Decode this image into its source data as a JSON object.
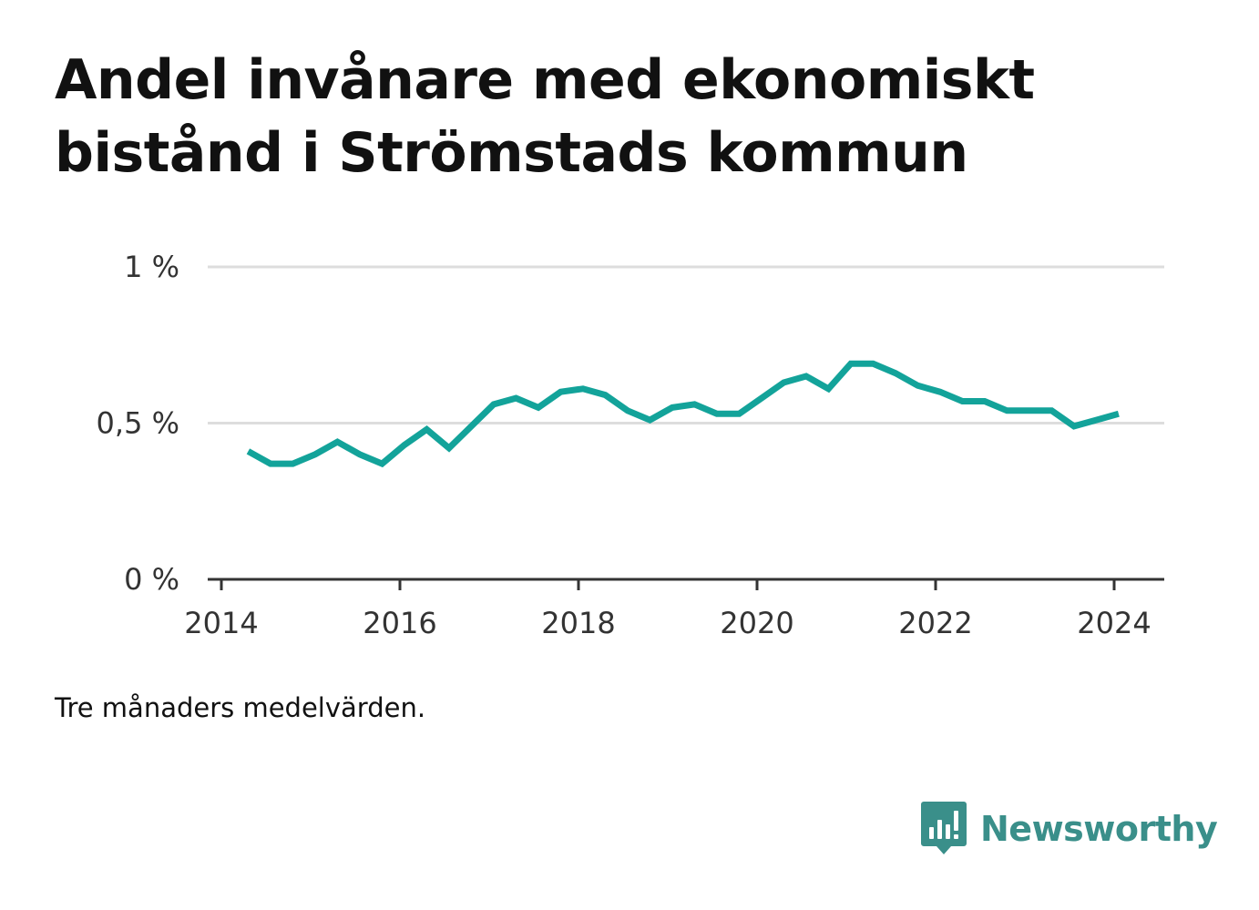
{
  "title": "Andel invånare med ekonomiskt bistånd i Strömstads kommun",
  "note": "Tre månaders medelvärden.",
  "brand": {
    "name": "Newsworthy",
    "icon": "newsworthy-chart-bubble-icon",
    "color": "#3a8f8a"
  },
  "colors": {
    "line": "#13a39a",
    "grid": "#dddddd",
    "axis": "#333333"
  },
  "chart_data": {
    "type": "line",
    "title": "Andel invånare med ekonomiskt bistånd i Strömstads kommun",
    "xlabel": "",
    "ylabel": "",
    "xlim": [
      2014,
      2024.6
    ],
    "ylim": [
      0,
      1
    ],
    "x_ticks": [
      2014,
      2016,
      2018,
      2020,
      2022,
      2024
    ],
    "x_tick_labels": [
      "2014",
      "2016",
      "2018",
      "2020",
      "2022",
      "2024"
    ],
    "y_ticks": [
      0,
      0.5,
      1
    ],
    "y_tick_labels": [
      "0 %",
      "0,5 %",
      "1 %"
    ],
    "grid": true,
    "legend": "none",
    "series": [
      {
        "x": [
          2014.3,
          2014.55,
          2014.8,
          2015.05,
          2015.3,
          2015.55,
          2015.8,
          2016.05,
          2016.3,
          2016.55,
          2016.8,
          2017.05,
          2017.3,
          2017.55,
          2017.8,
          2018.05,
          2018.3,
          2018.55,
          2018.8,
          2019.05,
          2019.3,
          2019.55,
          2019.8,
          2020.05,
          2020.3,
          2020.55,
          2020.8,
          2021.05,
          2021.3,
          2021.55,
          2021.8,
          2022.05,
          2022.3,
          2022.55,
          2022.8,
          2023.05,
          2023.3,
          2023.55,
          2023.8,
          2024.05
        ],
        "y": [
          0.41,
          0.37,
          0.37,
          0.4,
          0.44,
          0.4,
          0.37,
          0.43,
          0.48,
          0.42,
          0.49,
          0.56,
          0.58,
          0.55,
          0.6,
          0.61,
          0.59,
          0.54,
          0.51,
          0.55,
          0.56,
          0.53,
          0.53,
          0.58,
          0.63,
          0.65,
          0.61,
          0.69,
          0.69,
          0.66,
          0.62,
          0.6,
          0.57,
          0.57,
          0.54,
          0.54,
          0.54,
          0.49,
          0.51,
          0.53
        ]
      }
    ]
  }
}
